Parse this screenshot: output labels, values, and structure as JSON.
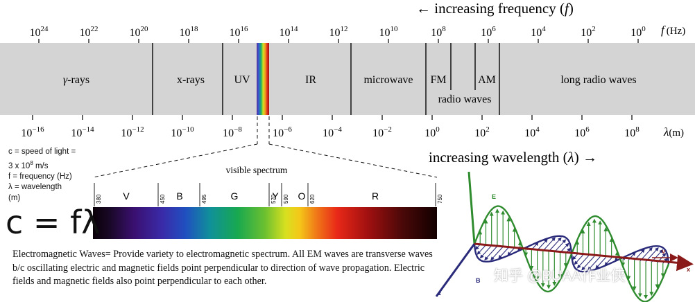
{
  "header": {
    "frequency_direction": "← increasing frequency (",
    "frequency_symbol": "f",
    "frequency_close": ")",
    "frequency_unit_symbol": "f",
    "frequency_unit": "(Hz)",
    "wavelength_direction": "increasing wavelength (",
    "wavelength_symbol": "λ",
    "wavelength_close": ") →",
    "wavelength_unit_symbol": "λ",
    "wavelength_unit": "(m)"
  },
  "frequency_ticks": [
    {
      "base": "10",
      "exp": "24"
    },
    {
      "base": "10",
      "exp": "22"
    },
    {
      "base": "10",
      "exp": "20"
    },
    {
      "base": "10",
      "exp": "18"
    },
    {
      "base": "10",
      "exp": "16"
    },
    {
      "base": "10",
      "exp": "14"
    },
    {
      "base": "10",
      "exp": "12"
    },
    {
      "base": "10",
      "exp": "10"
    },
    {
      "base": "10",
      "exp": "8"
    },
    {
      "base": "10",
      "exp": "6"
    },
    {
      "base": "10",
      "exp": "4"
    },
    {
      "base": "10",
      "exp": "2"
    },
    {
      "base": "10",
      "exp": "0"
    }
  ],
  "wavelength_ticks": [
    {
      "base": "10",
      "exp": "−16"
    },
    {
      "base": "10",
      "exp": "−14"
    },
    {
      "base": "10",
      "exp": "−12"
    },
    {
      "base": "10",
      "exp": "−10"
    },
    {
      "base": "10",
      "exp": "−8"
    },
    {
      "base": "10",
      "exp": "−6"
    },
    {
      "base": "10",
      "exp": "−4"
    },
    {
      "base": "10",
      "exp": "−2"
    },
    {
      "base": "10",
      "exp": "0"
    },
    {
      "base": "10",
      "exp": "2"
    },
    {
      "base": "10",
      "exp": "4"
    },
    {
      "base": "10",
      "exp": "6"
    },
    {
      "base": "10",
      "exp": "8"
    }
  ],
  "bands": {
    "gamma_symbol": "γ",
    "gamma_suffix": "-rays",
    "xrays": "x-rays",
    "uv": "UV",
    "ir": "IR",
    "microwave": "microwave",
    "fm": "FM",
    "am": "AM",
    "radio_waves": "radio waves",
    "long_radio": "long radio waves"
  },
  "visible": {
    "title": "visible spectrum",
    "colors": [
      {
        "letter": "V"
      },
      {
        "letter": "B"
      },
      {
        "letter": "G"
      },
      {
        "letter": "Y"
      },
      {
        "letter": "O"
      },
      {
        "letter": "R"
      }
    ],
    "boundaries": [
      "380",
      "450",
      "495",
      "570",
      "590",
      "620",
      "750"
    ]
  },
  "definitions": {
    "c1": "c = speed of light =",
    "c2_prefix": "3 x 10",
    "c2_exp": "8",
    "c2_suffix": " m/s",
    "f": "f = frequency (Hz)",
    "lambda1": "λ = wavelength",
    "lambda2": "(m)"
  },
  "equation": "c = fλ",
  "description": "Electromagnetic Waves= Provide variety to electromagnetic spectrum. All EM waves are transverse waves b/c oscillating electric and magnetic fields point perpendicular to direction of wave propagation. Electric fields and magnetic fields also point perpendicular to each other.",
  "wave_diagram": {
    "e_label": "E",
    "b_label": "B",
    "v_label": "v",
    "x_label": "x",
    "z_label": "z",
    "e_color": "#2e8b2e",
    "b_color": "#2a2a7a",
    "axis_color": "#8a1a1a"
  },
  "watermark": "知乎 @BUAA作业侠"
}
